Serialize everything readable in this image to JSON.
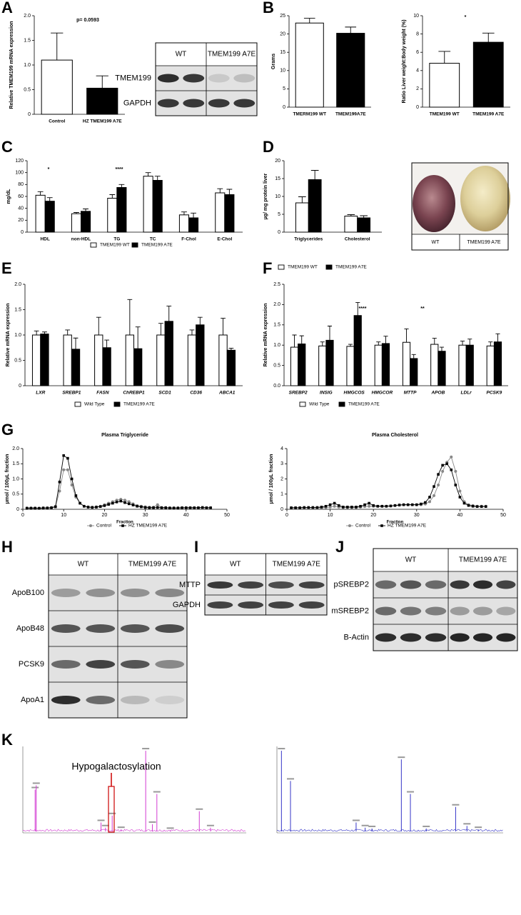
{
  "panel_labels": [
    "A",
    "B",
    "C",
    "D",
    "E",
    "F",
    "G",
    "H",
    "I",
    "J",
    "K"
  ],
  "chart_data": [
    {
      "type": "bar",
      "ylabel": "Relative TMEM199 mRNA expression",
      "categories": [
        "Control",
        "HZ TMEM199 A7E"
      ],
      "values": [
        1.1,
        0.53
      ],
      "errors": [
        0.55,
        0.25
      ],
      "colors": [
        "#ffffff",
        "#000000"
      ],
      "ylim": [
        0,
        2
      ],
      "yticks": [
        0,
        0.5,
        {
          "value": 1,
          "label": "1.0"
        },
        1.5,
        {
          "value": 2,
          "label": "2.0"
        }
      ],
      "annotations": [
        "p= 0.0593"
      ]
    },
    {
      "type": "bar",
      "ylabel": "Grams",
      "categories": [
        "TMERM199 WT",
        "TMEM199A7E"
      ],
      "values": [
        23,
        20.2
      ],
      "errors": [
        1.3,
        1.7
      ],
      "colors": [
        "#ffffff",
        "#000000"
      ],
      "ylim": [
        0,
        25
      ],
      "yticks": [
        0,
        5,
        10,
        15,
        20,
        25
      ]
    },
    {
      "type": "bar",
      "ylabel": "Ratio Liver weight:Body weight (%)",
      "categories": [
        "TMEM199 WT",
        "TMEM199 A7E"
      ],
      "values": [
        4.8,
        7.1
      ],
      "errors": [
        1.3,
        1.0
      ],
      "colors": [
        "#ffffff",
        "#000000"
      ],
      "ylim": [
        0,
        10
      ],
      "yticks": [
        0,
        2,
        4,
        6,
        8,
        10
      ],
      "annotations": [
        "*"
      ]
    },
    {
      "type": "bar",
      "ylabel": "mg/dL",
      "categories": [
        "HDL",
        "non-HDL",
        "TG",
        "TC",
        "F-Chol",
        "E-Chol"
      ],
      "series": [
        {
          "name": "TMEM199 WT",
          "color": "#ffffff",
          "values": [
            62,
            31,
            57,
            94,
            29,
            66
          ],
          "errors": [
            6,
            2,
            6,
            6,
            5,
            7
          ]
        },
        {
          "name": "TMEM199 A7E",
          "color": "#000000",
          "values": [
            52,
            35,
            75,
            87,
            24,
            63
          ],
          "errors": [
            6,
            4,
            5,
            7,
            8,
            9
          ]
        }
      ],
      "ylim": [
        0,
        120
      ],
      "yticks": [
        0,
        20,
        40,
        60,
        80,
        100,
        120
      ],
      "annotations": [
        "*",
        "****"
      ]
    },
    {
      "type": "bar",
      "ylabel": "µg/ mg protein liver",
      "categories": [
        "Triglycerides",
        "Cholesterol"
      ],
      "series": [
        {
          "name": "TMEM199 WT",
          "color": "#ffffff",
          "values": [
            8.2,
            4.5
          ],
          "errors": [
            1.7,
            0.4
          ]
        },
        {
          "name": "TMEM199 A7E",
          "color": "#000000",
          "values": [
            14.7,
            4.0
          ],
          "errors": [
            2.6,
            0.6
          ]
        }
      ],
      "ylim": [
        0,
        20
      ],
      "yticks": [
        0,
        5,
        10,
        15,
        20
      ]
    },
    {
      "type": "bar",
      "ylabel": "Relative mRNA expression",
      "italic_categories": true,
      "categories": [
        "LXR",
        "SREBP1",
        "FASN",
        "ChREBP1",
        "SCD1",
        "CD36",
        "ABCA1"
      ],
      "series": [
        {
          "name": "Wild Type",
          "color": "#ffffff",
          "values": [
            1.0,
            1.0,
            1.0,
            1.0,
            1.0,
            1.0,
            1.0
          ],
          "errors": [
            0.08,
            0.1,
            0.35,
            0.7,
            0.23,
            0.1,
            0.33
          ]
        },
        {
          "name": "TMEM199 A7E",
          "color": "#000000",
          "values": [
            1.02,
            0.72,
            0.75,
            0.73,
            1.27,
            1.2,
            0.7
          ],
          "errors": [
            0.04,
            0.22,
            0.15,
            0.43,
            0.3,
            0.15,
            0.04
          ]
        }
      ],
      "ylim": [
        0,
        2
      ],
      "yticks": [
        0,
        0.5,
        {
          "value": 1,
          "label": "1.0"
        },
        1.5,
        {
          "value": 2,
          "label": "2.0"
        }
      ]
    },
    {
      "type": "bar",
      "ylabel": "Relative mRNA expression",
      "italic_categories": true,
      "categories": [
        "SREBP2",
        "INSIG",
        "HMGCOS",
        "HMGCOR",
        "MTTP",
        "APOB",
        "LDLr",
        "PCSK9"
      ],
      "series": [
        {
          "name": "Wild Type",
          "color": "#ffffff",
          "values": [
            0.95,
            0.98,
            0.97,
            1.0,
            1.07,
            1.02,
            1.0,
            0.98
          ],
          "errors": [
            0.3,
            0.1,
            0.05,
            0.08,
            0.33,
            0.15,
            0.1,
            0.1
          ]
        },
        {
          "name": "TMEM199 A7E",
          "color": "#000000",
          "values": [
            1.03,
            1.12,
            1.73,
            1.04,
            0.67,
            0.85,
            1.0,
            1.08
          ],
          "errors": [
            0.2,
            0.35,
            0.32,
            0.18,
            0.1,
            0.1,
            0.15,
            0.2
          ]
        }
      ],
      "ylim": [
        0,
        2.5
      ],
      "yticks": [
        {
          "value": 0,
          "label": "0.0"
        },
        0.5,
        {
          "value": 1,
          "label": "1.0"
        },
        1.5,
        {
          "value": 2,
          "label": "2.0"
        },
        2.5
      ],
      "annotations": [
        "****",
        "**"
      ]
    },
    {
      "type": "line",
      "title": "Plasma Triglyceride",
      "xlabel": "Fraction",
      "ylabel": "µmol / 100µL fraction",
      "x": [
        1,
        2,
        3,
        4,
        5,
        6,
        7,
        8,
        9,
        10,
        11,
        12,
        13,
        14,
        15,
        16,
        17,
        18,
        19,
        20,
        21,
        22,
        23,
        24,
        25,
        26,
        27,
        28,
        29,
        30,
        31,
        32,
        33,
        34,
        35,
        36,
        37,
        38,
        39,
        40,
        41,
        42,
        43,
        44,
        45,
        46
      ],
      "series": [
        {
          "name": "Control",
          "color": "#888888",
          "marker": "circle",
          "values": [
            0.05,
            0.05,
            0.05,
            0.04,
            0.05,
            0.05,
            0.06,
            0.1,
            0.6,
            1.3,
            1.3,
            0.8,
            0.4,
            0.2,
            0.1,
            0.08,
            0.07,
            0.08,
            0.1,
            0.15,
            0.2,
            0.25,
            0.3,
            0.33,
            0.3,
            0.25,
            0.18,
            0.12,
            0.1,
            0.08,
            0.07,
            0.07,
            0.15,
            0.06,
            0.06,
            0.05,
            0.05,
            0.05,
            0.05,
            0.05,
            0.05,
            0.05,
            0.05,
            0.05,
            0.05,
            0.05
          ]
        },
        {
          "name": "HZ TMEM199 A7E",
          "color": "#000000",
          "marker": "square",
          "values": [
            0.03,
            0.03,
            0.03,
            0.03,
            0.04,
            0.04,
            0.05,
            0.08,
            0.9,
            1.77,
            1.68,
            1.0,
            0.45,
            0.2,
            0.1,
            0.07,
            0.06,
            0.07,
            0.09,
            0.12,
            0.16,
            0.2,
            0.24,
            0.27,
            0.22,
            0.18,
            0.14,
            0.1,
            0.08,
            0.06,
            0.05,
            0.05,
            0.06,
            0.05,
            0.05,
            0.04,
            0.04,
            0.04,
            0.05,
            0.05,
            0.05,
            0.05,
            0.05,
            0.06,
            0.05,
            0.05
          ]
        }
      ],
      "xlim": [
        0,
        50
      ],
      "xticks": [
        0,
        10,
        20,
        30,
        40,
        50
      ],
      "ylim": [
        0,
        2
      ],
      "yticks": [
        0,
        0.5,
        {
          "value": 1,
          "label": "1.0"
        },
        1.5,
        {
          "value": 2,
          "label": "2.0"
        }
      ]
    },
    {
      "type": "line",
      "title": "Plasma Cholesterol",
      "xlabel": "Fraction",
      "ylabel": "µmol / 100µL fraction",
      "x": [
        1,
        2,
        3,
        4,
        5,
        6,
        7,
        8,
        9,
        10,
        11,
        12,
        13,
        14,
        15,
        16,
        17,
        18,
        19,
        20,
        21,
        22,
        23,
        24,
        25,
        26,
        27,
        28,
        29,
        30,
        31,
        32,
        33,
        34,
        35,
        36,
        37,
        38,
        39,
        40,
        41,
        42,
        43,
        44,
        45,
        46
      ],
      "series": [
        {
          "name": "Control",
          "color": "#888888",
          "marker": "circle",
          "values": [
            0.1,
            0.1,
            0.1,
            0.1,
            0.1,
            0.1,
            0.1,
            0.1,
            0.12,
            0.15,
            0.2,
            0.15,
            0.12,
            0.12,
            0.12,
            0.12,
            0.15,
            0.18,
            0.2,
            0.2,
            0.2,
            0.2,
            0.2,
            0.22,
            0.25,
            0.28,
            0.3,
            0.3,
            0.3,
            0.3,
            0.3,
            0.35,
            0.5,
            0.9,
            1.6,
            2.5,
            3.1,
            3.45,
            2.5,
            1.2,
            0.5,
            0.3,
            0.25,
            0.2,
            0.2,
            0.2
          ]
        },
        {
          "name": "HZ TMEM199 A7E",
          "color": "#000000",
          "marker": "square",
          "values": [
            0.1,
            0.1,
            0.1,
            0.12,
            0.12,
            0.12,
            0.12,
            0.15,
            0.2,
            0.3,
            0.4,
            0.25,
            0.15,
            0.15,
            0.15,
            0.15,
            0.2,
            0.3,
            0.4,
            0.25,
            0.2,
            0.2,
            0.2,
            0.22,
            0.25,
            0.28,
            0.3,
            0.3,
            0.3,
            0.3,
            0.35,
            0.45,
            0.8,
            1.5,
            2.3,
            2.9,
            3.0,
            2.6,
            1.6,
            0.8,
            0.4,
            0.25,
            0.2,
            0.18,
            0.18,
            0.18
          ]
        }
      ],
      "xlim": [
        0,
        50
      ],
      "xticks": [
        0,
        10,
        20,
        30,
        40,
        50
      ],
      "ylim": [
        0,
        4
      ],
      "yticks": [
        0,
        1,
        2,
        3,
        4
      ]
    }
  ],
  "blots": [
    {
      "columns": [
        "WT",
        "TMEM199 A7E"
      ],
      "rows": [
        "TMEM199",
        "GAPDH"
      ]
    },
    {
      "columns": [
        "WT",
        "TMEM199 A7E"
      ],
      "rows": [
        "ApoB100",
        "ApoB48",
        "PCSK9",
        "ApoA1"
      ]
    },
    {
      "columns": [
        "WT",
        "TMEM199 A7E"
      ],
      "rows": [
        "MTTP",
        "GAPDH"
      ]
    },
    {
      "columns": [
        "WT",
        "TMEM199 A7E"
      ],
      "rows": [
        "pSREBP2",
        "mSREBP2",
        "B-Actin"
      ]
    },
    {
      "columns": [
        "WT",
        "TMEM199 A7E"
      ]
    }
  ],
  "spectrum_annotation": "Hypogalactosylation"
}
